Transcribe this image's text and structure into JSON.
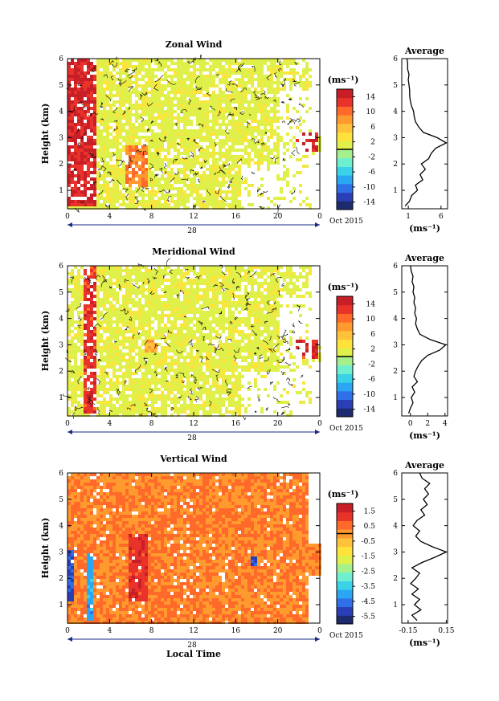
{
  "figure": {
    "date_label": "28",
    "month_label": "Oct 2015",
    "xlabel": "Local Time",
    "average_title": "Average",
    "colorbar_unit": "(ms⁻¹)"
  },
  "colors": {
    "jet": [
      "#1e2a6e",
      "#2a3fb5",
      "#2f6fe8",
      "#2aa6f2",
      "#39d2e6",
      "#6ef0d0",
      "#a6f08c",
      "#e0f04a",
      "#ffe23a",
      "#ffc23a",
      "#ff9a2e",
      "#ff6a2a",
      "#e8322a",
      "#c81e28"
    ],
    "zero_line": "#000000"
  },
  "chart_data": [
    {
      "type": "heatmap",
      "title": "Zonal Wind",
      "xlabel": "",
      "ylabel": "Height (km)",
      "xlim": [
        0,
        24
      ],
      "ylim": [
        0.3,
        6
      ],
      "x_ticks": [
        "0",
        "4",
        "8",
        "12",
        "16",
        "20",
        "0"
      ],
      "y_ticks": [
        "1",
        "2",
        "3",
        "4",
        "5",
        "6"
      ],
      "colorbar": {
        "unit": "(ms⁻¹)",
        "range": [
          -16,
          16
        ],
        "ticks": [
          "14",
          "10",
          "6",
          "2",
          "-2",
          "-6",
          "-10",
          "-14"
        ]
      },
      "features": [
        {
          "x_range": [
            0,
            2.5
          ],
          "y_range": [
            0.4,
            6
          ],
          "value": 14
        },
        {
          "x_range": [
            5.5,
            7.5
          ],
          "y_range": [
            1.2,
            2.8
          ],
          "value": 9
        },
        {
          "x_range": [
            21.5,
            23.8
          ],
          "y_range": [
            2.5,
            3.2
          ],
          "value": 14
        }
      ],
      "profile": {
        "title": "Average",
        "xlabel": "(ms⁻¹)",
        "xlim": [
          0,
          7
        ],
        "x_ticks": [
          "1",
          "6"
        ],
        "ylim": [
          0.3,
          6
        ],
        "y_ticks": [
          "1",
          "2",
          "3",
          "4",
          "5",
          "6"
        ],
        "height": [
          0.4,
          0.6,
          0.8,
          1.0,
          1.2,
          1.4,
          1.6,
          1.8,
          2.0,
          2.2,
          2.4,
          2.6,
          2.8,
          3.0,
          3.2,
          3.4,
          3.6,
          3.8,
          4.0,
          4.2,
          4.4,
          4.6,
          4.8,
          5.0,
          5.2,
          5.4,
          5.6,
          5.8,
          6.0
        ],
        "value": [
          0.5,
          1.2,
          1.5,
          2.4,
          2.1,
          3.2,
          2.8,
          3.6,
          3.0,
          4.1,
          4.5,
          5.2,
          6.8,
          5.4,
          3.3,
          2.6,
          2.1,
          1.9,
          1.8,
          1.5,
          1.3,
          1.2,
          1.2,
          1.1,
          1.0,
          1.1,
          0.9,
          0.9,
          0.8
        ]
      }
    },
    {
      "type": "heatmap",
      "title": "Meridional Wind",
      "xlabel": "",
      "ylabel": "Height (km)",
      "xlim": [
        0,
        24
      ],
      "ylim": [
        0.3,
        6
      ],
      "x_ticks": [
        "0",
        "4",
        "8",
        "12",
        "16",
        "20",
        "0"
      ],
      "y_ticks": [
        "1",
        "2",
        "3",
        "4",
        "5",
        "6"
      ],
      "colorbar": {
        "unit": "(ms⁻¹)",
        "range": [
          -16,
          16
        ],
        "ticks": [
          "14",
          "10",
          "6",
          "2",
          "-2",
          "-6",
          "-10",
          "-14"
        ]
      },
      "features": [
        {
          "x_range": [
            1.5,
            2.5
          ],
          "y_range": [
            0.5,
            6
          ],
          "value": 13
        },
        {
          "x_range": [
            7.2,
            8.5
          ],
          "y_range": [
            2.8,
            3.2
          ],
          "value": 7
        },
        {
          "x_range": [
            21.5,
            23.8
          ],
          "y_range": [
            2.5,
            3.2
          ],
          "value": 13
        }
      ],
      "profile": {
        "title": "Average",
        "xlabel": "(ms⁻¹)",
        "xlim": [
          -1,
          4.3
        ],
        "x_ticks": [
          "0",
          "2",
          "4"
        ],
        "ylim": [
          0.3,
          6
        ],
        "y_ticks": [
          "1",
          "2",
          "3",
          "4",
          "5",
          "6"
        ],
        "height": [
          0.4,
          0.6,
          0.8,
          1.0,
          1.2,
          1.4,
          1.6,
          1.8,
          2.0,
          2.2,
          2.4,
          2.6,
          2.8,
          3.0,
          3.2,
          3.4,
          3.6,
          3.8,
          4.0,
          4.2,
          4.4,
          4.6,
          4.8,
          5.0,
          5.2,
          5.4,
          5.6,
          5.8,
          6.0
        ],
        "value": [
          -0.2,
          0.0,
          0.3,
          0.1,
          0.5,
          0.2,
          0.8,
          0.4,
          0.6,
          0.9,
          1.3,
          2.0,
          3.4,
          4.1,
          2.3,
          1.1,
          0.8,
          0.6,
          0.7,
          0.5,
          0.6,
          0.4,
          0.5,
          0.3,
          0.4,
          0.2,
          0.3,
          0.1,
          0.0
        ]
      }
    },
    {
      "type": "heatmap",
      "title": "Vertical Wind",
      "xlabel": "Local Time",
      "ylabel": "Height (km)",
      "xlim": [
        0,
        24
      ],
      "ylim": [
        0.3,
        6
      ],
      "x_ticks": [
        "0",
        "4",
        "8",
        "12",
        "16",
        "20",
        "0"
      ],
      "y_ticks": [
        "1",
        "2",
        "3",
        "4",
        "5",
        "6"
      ],
      "colorbar": {
        "unit": "(ms⁻¹)",
        "range": [
          -6,
          2
        ],
        "ticks": [
          "1.5",
          "0.5",
          "-0.5",
          "-1.5",
          "-2.5",
          "-3.5",
          "-4.5",
          "-5.5"
        ]
      },
      "features": [
        {
          "x_range": [
            0,
            0.4
          ],
          "y_range": [
            1.2,
            3.1
          ],
          "value": -5
        },
        {
          "x_range": [
            1.6,
            2.2
          ],
          "y_range": [
            0.4,
            3.0
          ],
          "value": -4
        },
        {
          "x_range": [
            5.6,
            7.5
          ],
          "y_range": [
            1.2,
            3.8
          ],
          "value": 1.2
        },
        {
          "x_range": [
            17.2,
            17.8
          ],
          "y_range": [
            2.5,
            2.9
          ],
          "value": -5
        }
      ],
      "profile": {
        "title": "Average",
        "xlabel": "(ms⁻¹)",
        "xlim": [
          -0.2,
          0.16
        ],
        "x_ticks": [
          "-0.15",
          "0.15"
        ],
        "ylim": [
          0.3,
          6
        ],
        "y_ticks": [
          "1",
          "2",
          "3",
          "4",
          "5",
          "6"
        ],
        "height": [
          0.4,
          0.6,
          0.8,
          1.0,
          1.2,
          1.4,
          1.6,
          1.8,
          2.0,
          2.2,
          2.4,
          2.6,
          2.8,
          3.0,
          3.2,
          3.4,
          3.6,
          3.8,
          4.0,
          4.2,
          4.4,
          4.6,
          4.8,
          5.0,
          5.2,
          5.4,
          5.6,
          5.8,
          6.0
        ],
        "value": [
          -0.08,
          -0.12,
          -0.05,
          -0.1,
          -0.06,
          -0.12,
          -0.07,
          -0.13,
          -0.09,
          -0.06,
          -0.12,
          -0.04,
          0.06,
          0.15,
          0.04,
          -0.05,
          -0.09,
          -0.06,
          -0.11,
          -0.08,
          -0.02,
          -0.05,
          0.0,
          -0.03,
          0.01,
          -0.02,
          0.02,
          -0.04,
          -0.06
        ]
      }
    }
  ]
}
